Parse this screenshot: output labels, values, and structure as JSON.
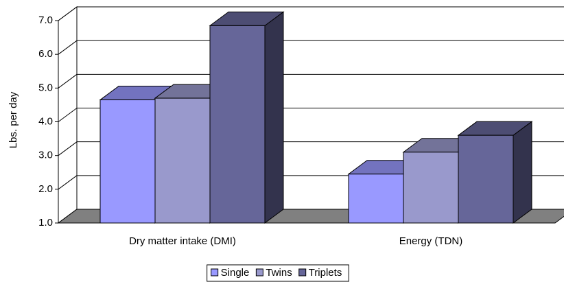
{
  "chart_data": {
    "type": "bar3d",
    "y_label": "Lbs. per day",
    "categories": [
      "Dry matter intake (DMI)",
      "Energy (TDN)"
    ],
    "series": [
      {
        "name": "Single",
        "color": "#9999ff",
        "values": [
          4.65,
          2.45
        ]
      },
      {
        "name": "Twins",
        "color": "#9999cc",
        "values": [
          4.7,
          3.1
        ]
      },
      {
        "name": "Triplets",
        "color": "#666699",
        "values": [
          6.85,
          3.6
        ]
      }
    ],
    "ylim": [
      1,
      7
    ],
    "yticks": [
      {
        "value": 1,
        "label": "1.0"
      },
      {
        "value": 2,
        "label": "2.0"
      },
      {
        "value": 3,
        "label": "3.0"
      },
      {
        "value": 4,
        "label": "4.0"
      },
      {
        "value": 5,
        "label": "5.0"
      },
      {
        "value": 6,
        "label": "6.0"
      },
      {
        "value": 7,
        "label": "7.0"
      }
    ],
    "grid": true,
    "legend": "bottom"
  }
}
